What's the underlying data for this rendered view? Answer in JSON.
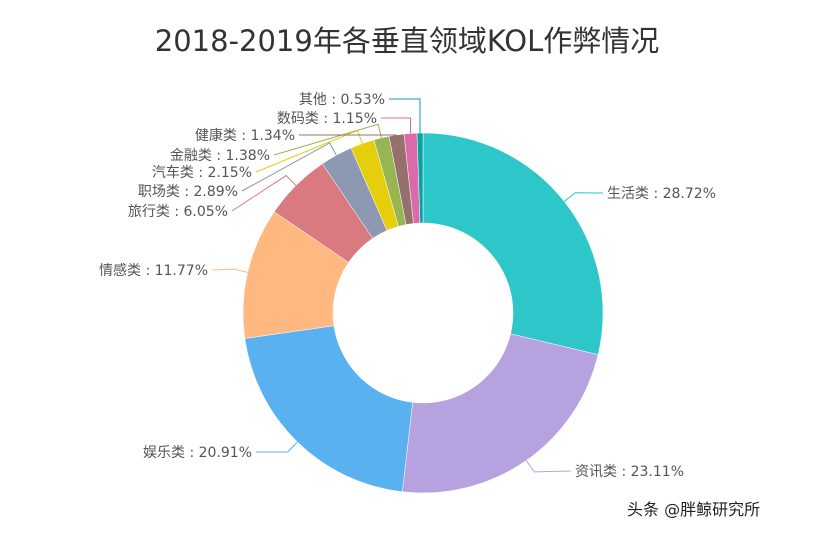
{
  "chart_data": {
    "type": "pie",
    "variant": "donut",
    "title": "2018-2019年各垂直领域KOL作弊情况",
    "slices": [
      {
        "label": "生活类",
        "value": 28.72,
        "color": "#2ec7c9"
      },
      {
        "label": "资讯类",
        "value": 23.11,
        "color": "#b6a2de"
      },
      {
        "label": "娱乐类",
        "value": 20.91,
        "color": "#5ab1ef"
      },
      {
        "label": "情感类",
        "value": 11.77,
        "color": "#ffb980"
      },
      {
        "label": "旅行类",
        "value": 6.05,
        "color": "#d87a80"
      },
      {
        "label": "职场类",
        "value": 2.89,
        "color": "#8d98b3"
      },
      {
        "label": "汽车类",
        "value": 2.15,
        "color": "#e5cf0d"
      },
      {
        "label": "金融类",
        "value": 1.38,
        "color": "#97b552"
      },
      {
        "label": "健康类",
        "value": 1.34,
        "color": "#95706d"
      },
      {
        "label": "数码类",
        "value": 1.15,
        "color": "#dc69aa"
      },
      {
        "label": "其他",
        "value": 0.53,
        "color": "#07a2a4"
      }
    ],
    "label_format": "{name} : {value}%"
  },
  "watermark": "头条 @胖鲸研究所"
}
